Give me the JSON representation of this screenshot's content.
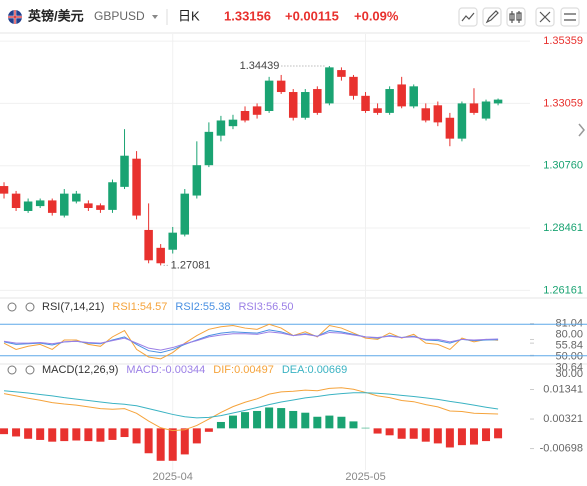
{
  "header": {
    "name": "英镑/美元",
    "symbol": "GBPUSD",
    "period": "日K",
    "price": "1.33156",
    "change": "+0.00115",
    "change_pct": "+0.09%"
  },
  "chart_data": [
    {
      "type": "candlestick",
      "categories": [
        null,
        null,
        null,
        null,
        null,
        null,
        null,
        null,
        null,
        null,
        null,
        null,
        null,
        null,
        "2025-04",
        null,
        null,
        null,
        null,
        null,
        null,
        null,
        null,
        null,
        null,
        null,
        null,
        null,
        null,
        null,
        "2025-05",
        null,
        null,
        null,
        null,
        null,
        null,
        null,
        null,
        null,
        null,
        null
      ],
      "open": [
        1.3001,
        1.2973,
        1.2909,
        1.2927,
        1.2948,
        1.2892,
        1.2944,
        1.2937,
        1.293,
        1.2913,
        1.2998,
        1.3102,
        1.2839,
        1.2773,
        1.2766,
        1.2822,
        1.2966,
        1.3078,
        1.3187,
        1.3222,
        1.3278,
        1.3295,
        1.3278,
        1.339,
        1.3348,
        1.3253,
        1.3359,
        1.3306,
        1.3429,
        1.3404,
        1.3334,
        1.3288,
        1.3271,
        1.3376,
        1.3295,
        1.3288,
        1.3299,
        1.3253,
        1.3176,
        1.3306,
        1.325,
        1.3306
      ],
      "high": [
        1.3015,
        1.2983,
        1.2955,
        1.2955,
        1.2955,
        1.299,
        1.2983,
        1.2948,
        1.2937,
        1.3025,
        1.3211,
        1.313,
        1.2937,
        1.2787,
        1.285,
        1.299,
        1.3166,
        1.3236,
        1.326,
        1.3264,
        1.3295,
        1.3306,
        1.3404,
        1.3411,
        1.3359,
        1.3359,
        1.3369,
        1.34439,
        1.3439,
        1.3411,
        1.3348,
        1.3306,
        1.3369,
        1.3404,
        1.3376,
        1.3306,
        1.3313,
        1.3271,
        1.3313,
        1.3362,
        1.332,
        1.3324
      ],
      "low": [
        1.2955,
        1.2909,
        1.2902,
        1.292,
        1.2892,
        1.2885,
        1.2937,
        1.2909,
        1.2902,
        1.2902,
        1.299,
        1.2878,
        1.2716,
        1.27081,
        1.2752,
        1.2815,
        1.2955,
        1.3071,
        1.3166,
        1.3211,
        1.3236,
        1.325,
        1.3271,
        1.3341,
        1.3243,
        1.3246,
        1.3264,
        1.3299,
        1.339,
        1.332,
        1.3271,
        1.3264,
        1.3264,
        1.3288,
        1.3288,
        1.3236,
        1.3222,
        1.3148,
        1.3166,
        1.3264,
        1.3243,
        1.3299
      ],
      "close": [
        1.2973,
        1.292,
        1.2944,
        1.2948,
        1.2902,
        1.2973,
        1.2973,
        1.292,
        1.2913,
        1.3015,
        1.3113,
        1.2892,
        1.2727,
        1.2716,
        1.2829,
        1.2973,
        1.3078,
        1.3201,
        1.3243,
        1.3246,
        1.3243,
        1.3264,
        1.339,
        1.3348,
        1.3253,
        1.3348,
        1.3271,
        1.3439,
        1.3404,
        1.3334,
        1.3278,
        1.3271,
        1.3359,
        1.3295,
        1.3369,
        1.3243,
        1.3236,
        1.3176,
        1.3306,
        1.3271,
        1.3313,
        1.332
      ],
      "up_color": "#1aa372",
      "down_color": "#e8312e",
      "ylim": [
        1.261,
        1.354
      ],
      "yticks": [
        1.35359,
        1.33059,
        {
          "value": 1.3076,
          "label": "1.30760"
        },
        1.28461,
        1.26161
      ],
      "grid": true
    },
    {
      "type": "line",
      "title": "RSI(7,14,21)",
      "series": [
        {
          "name": "RSI1:54.57",
          "color": "#f5a33b",
          "values": [
            50,
            40,
            45,
            48,
            40,
            55,
            55,
            48,
            45,
            60,
            70,
            40,
            28,
            25,
            35,
            50,
            62,
            72,
            76,
            78,
            74,
            72,
            80,
            74,
            62,
            68,
            60,
            78,
            74,
            66,
            58,
            56,
            66,
            58,
            64,
            50,
            48,
            40,
            58,
            52,
            56,
            54.57
          ]
        },
        {
          "name": "RSI2:55.38",
          "color": "#4a90e2",
          "values": [
            52,
            48,
            49,
            50,
            47,
            52,
            53,
            50,
            49,
            55,
            60,
            48,
            38,
            35,
            40,
            48,
            55,
            62,
            66,
            68,
            67,
            66,
            71,
            68,
            62,
            65,
            61,
            70,
            68,
            64,
            60,
            58,
            62,
            59,
            61,
            55,
            54,
            50,
            56,
            54,
            55,
            55.38
          ]
        },
        {
          "name": "RSI3:56.50",
          "color": "#9b7fe6",
          "values": [
            53,
            50,
            50,
            51,
            49,
            52,
            53,
            51,
            50,
            54,
            58,
            50,
            42,
            39,
            43,
            49,
            54,
            60,
            63,
            65,
            65,
            64,
            68,
            66,
            62,
            64,
            61,
            67,
            66,
            63,
            60,
            59,
            61,
            59,
            60,
            56,
            56,
            52,
            56,
            55,
            56,
            56.5
          ]
        }
      ],
      "ylim": [
        20,
        90
      ],
      "yticks": [
        {
          "value": 80,
          "label": "80.00"
        },
        81.04,
        55.84,
        {
          "value": 50,
          "label": "50.00"
        },
        {
          "value": 30,
          "label": "30.00"
        },
        30.64
      ],
      "levels": [
        80,
        30
      ],
      "level_color": "#5fa8e8"
    },
    {
      "type": "macd",
      "title": "MACD(12,26,9)",
      "series": [
        {
          "name": "MACD:-0.00344",
          "color": "#9b7fe6",
          "kind": "bar",
          "values": [
            -0.002,
            -0.0028,
            -0.0036,
            -0.004,
            -0.0046,
            -0.0044,
            -0.0042,
            -0.0044,
            -0.0046,
            -0.004,
            -0.003,
            -0.0052,
            -0.0086,
            -0.0112,
            -0.0112,
            -0.009,
            -0.0052,
            -0.0012,
            0.0022,
            0.0044,
            0.0056,
            0.006,
            0.0072,
            0.007,
            0.006,
            0.0054,
            0.004,
            0.0044,
            0.004,
            0.0024,
            0.0002,
            -0.0018,
            -0.0024,
            -0.0036,
            -0.0036,
            -0.0046,
            -0.0052,
            -0.0066,
            -0.0058,
            -0.0056,
            -0.0044,
            -0.00344
          ]
        },
        {
          "name": "DIF:0.00497",
          "color": "#f5a33b",
          "kind": "line",
          "values": [
            0.012,
            0.0112,
            0.0104,
            0.0097,
            0.0089,
            0.0084,
            0.008,
            0.0074,
            0.0068,
            0.0066,
            0.0068,
            0.0052,
            0.0025,
            0.0002,
            -0.0008,
            -0.0005,
            0.001,
            0.0032,
            0.0055,
            0.0075,
            0.009,
            0.0102,
            0.0118,
            0.0126,
            0.0128,
            0.0132,
            0.013,
            0.0138,
            0.014,
            0.0135,
            0.0124,
            0.0112,
            0.0106,
            0.0096,
            0.0092,
            0.0082,
            0.0074,
            0.006,
            0.0058,
            0.0052,
            0.0051,
            0.00497
          ]
        },
        {
          "name": "DEA:0.00669",
          "color": "#3bb3c3",
          "kind": "line",
          "values": [
            0.013,
            0.0126,
            0.0122,
            0.0117,
            0.0112,
            0.0106,
            0.0101,
            0.0096,
            0.0091,
            0.0086,
            0.0083,
            0.0078,
            0.0068,
            0.0058,
            0.0048,
            0.004,
            0.0036,
            0.0038,
            0.0044,
            0.0053,
            0.0062,
            0.0072,
            0.0082,
            0.0091,
            0.0098,
            0.0105,
            0.011,
            0.0116,
            0.012,
            0.0123,
            0.0123,
            0.0121,
            0.0118,
            0.0114,
            0.011,
            0.0105,
            0.01,
            0.0093,
            0.0087,
            0.008,
            0.0073,
            0.00669
          ]
        }
      ],
      "up_color": "#1aa372",
      "down_color": "#e8312e",
      "ylim": [
        -0.013,
        0.016
      ],
      "yticks": [
        0.01341,
        0.00321,
        -0.00698
      ]
    }
  ]
}
